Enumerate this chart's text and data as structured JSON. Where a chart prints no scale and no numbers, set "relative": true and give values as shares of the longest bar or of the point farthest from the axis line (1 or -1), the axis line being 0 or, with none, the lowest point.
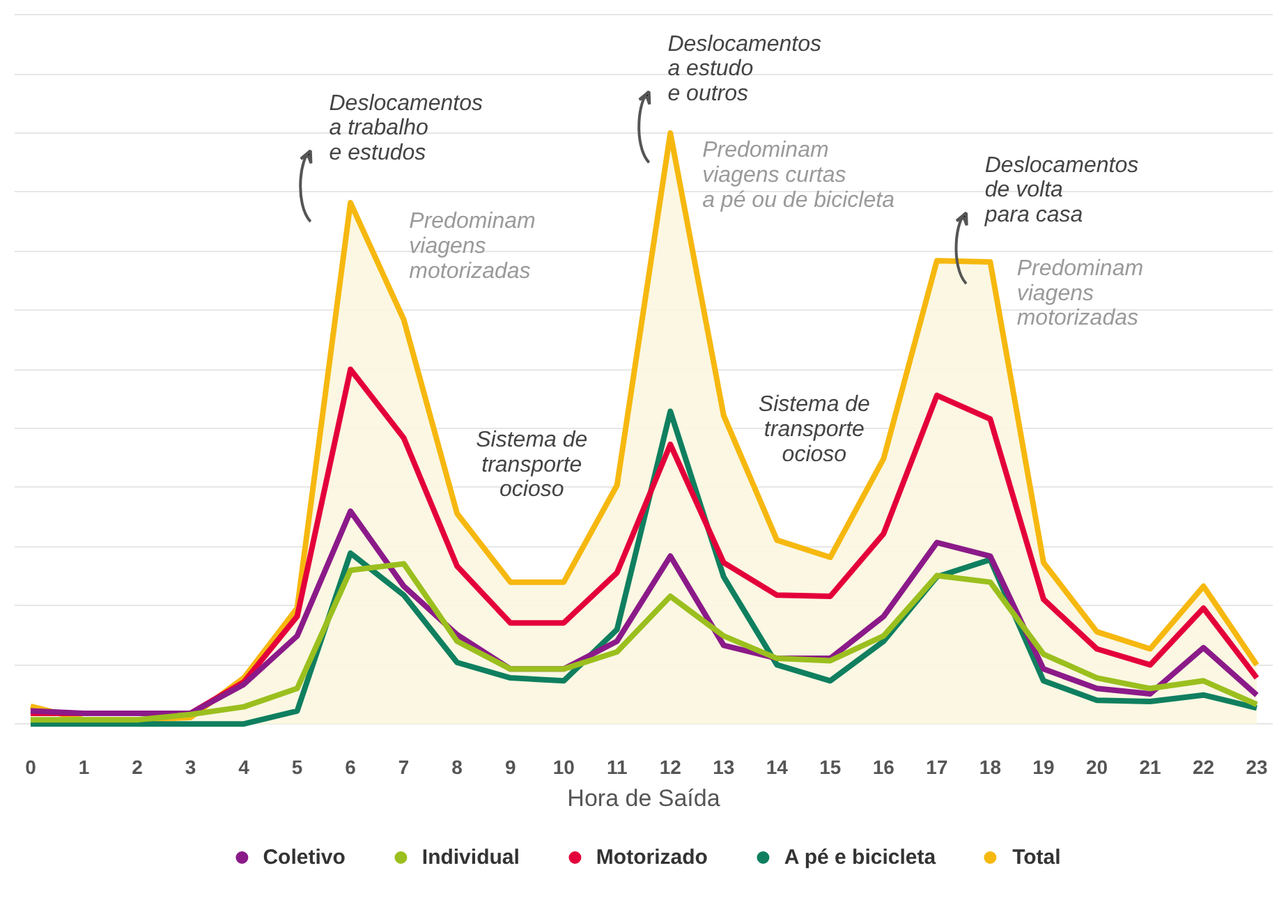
{
  "chart_data": {
    "type": "line",
    "relative": true,
    "xlabel": "Hora de Saída",
    "x": [
      0,
      1,
      2,
      3,
      4,
      5,
      6,
      7,
      8,
      9,
      10,
      11,
      12,
      13,
      14,
      15,
      16,
      17,
      18,
      19,
      20,
      21,
      22,
      23
    ],
    "xlim": [
      -0.3,
      23.3
    ],
    "xticks": [
      0,
      1,
      2,
      3,
      4,
      5,
      6,
      7,
      8,
      9,
      10,
      11,
      12,
      13,
      14,
      15,
      16,
      17,
      18,
      19,
      20,
      21,
      22,
      23
    ],
    "grid": "y",
    "legend": "bottom",
    "line_style": "solid",
    "marker": "none",
    "series": [
      {
        "name": "Total",
        "type": "area",
        "color": "#f6b80f",
        "values": [
          0.03,
          0.007,
          0.007,
          0.011,
          0.078,
          0.196,
          0.882,
          0.684,
          0.356,
          0.24,
          0.24,
          0.404,
          1.0,
          0.522,
          0.311,
          0.282,
          0.449,
          0.784,
          0.782,
          0.273,
          0.156,
          0.127,
          0.233,
          0.1
        ]
      },
      {
        "name": "A pé e bicicleta",
        "color": "#0f7f5f",
        "values": [
          0,
          0,
          0,
          0,
          0,
          0.022,
          0.289,
          0.218,
          0.104,
          0.078,
          0.073,
          0.16,
          0.529,
          0.249,
          0.1,
          0.073,
          0.14,
          0.249,
          0.278,
          0.073,
          0.04,
          0.038,
          0.049,
          0.027
        ]
      },
      {
        "name": "Motorizado",
        "color": "#e4003a",
        "values": [
          0.018,
          0.018,
          0.018,
          0.018,
          0.071,
          0.182,
          0.6,
          0.484,
          0.267,
          0.171,
          0.171,
          0.256,
          0.473,
          0.273,
          0.218,
          0.216,
          0.322,
          0.556,
          0.516,
          0.211,
          0.127,
          0.1,
          0.196,
          0.078
        ]
      },
      {
        "name": "Coletivo",
        "color": "#8b1a89",
        "values": [
          0.022,
          0.018,
          0.018,
          0.018,
          0.067,
          0.149,
          0.36,
          0.233,
          0.151,
          0.093,
          0.093,
          0.14,
          0.284,
          0.133,
          0.111,
          0.111,
          0.182,
          0.307,
          0.284,
          0.093,
          0.06,
          0.051,
          0.129,
          0.049
        ]
      },
      {
        "name": "Individual",
        "color": "#9bbf1e",
        "values": [
          0.007,
          0.007,
          0.007,
          0.016,
          0.029,
          0.06,
          0.26,
          0.271,
          0.14,
          0.093,
          0.093,
          0.122,
          0.216,
          0.149,
          0.111,
          0.107,
          0.149,
          0.251,
          0.24,
          0.118,
          0.078,
          0.06,
          0.073,
          0.033
        ]
      }
    ],
    "annotations": [
      "Deslocamentos a trabalho e estudos",
      "Predominam viagens motorizadas",
      "Sistema de transporte ocioso",
      "Deslocamentos a estudo e outros",
      "Predominam viagens curtas a pé ou de bicicleta",
      "Sistema de transporte ocioso",
      "Deslocamentos de volta para casa",
      "Predominam viagens motorizadas"
    ]
  }
}
